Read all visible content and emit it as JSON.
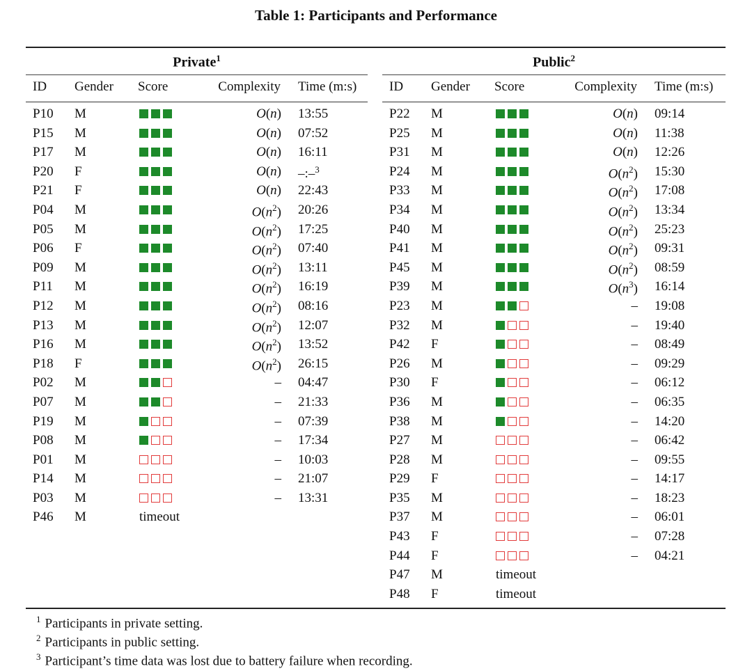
{
  "caption": "Table 1: Participants and Performance",
  "columns": [
    "ID",
    "Gender",
    "Score",
    "Complexity",
    "Time (m:s)"
  ],
  "private": {
    "title": "Private",
    "title_sup": "1",
    "rows": [
      {
        "id": "P10",
        "gender": "M",
        "score": 3,
        "complexity": "n",
        "time": "13:55"
      },
      {
        "id": "P15",
        "gender": "M",
        "score": 3,
        "complexity": "n",
        "time": "07:52"
      },
      {
        "id": "P17",
        "gender": "M",
        "score": 3,
        "complexity": "n",
        "time": "16:11"
      },
      {
        "id": "P20",
        "gender": "F",
        "score": 3,
        "complexity": "n",
        "time": "–:–",
        "time_sup": "3"
      },
      {
        "id": "P21",
        "gender": "F",
        "score": 3,
        "complexity": "n",
        "time": "22:43"
      },
      {
        "id": "P04",
        "gender": "M",
        "score": 3,
        "complexity": "n^2",
        "time": "20:26"
      },
      {
        "id": "P05",
        "gender": "M",
        "score": 3,
        "complexity": "n^2",
        "time": "17:25"
      },
      {
        "id": "P06",
        "gender": "F",
        "score": 3,
        "complexity": "n^2",
        "time": "07:40"
      },
      {
        "id": "P09",
        "gender": "M",
        "score": 3,
        "complexity": "n^2",
        "time": "13:11"
      },
      {
        "id": "P11",
        "gender": "M",
        "score": 3,
        "complexity": "n^2",
        "time": "16:19"
      },
      {
        "id": "P12",
        "gender": "M",
        "score": 3,
        "complexity": "n^2",
        "time": "08:16"
      },
      {
        "id": "P13",
        "gender": "M",
        "score": 3,
        "complexity": "n^2",
        "time": "12:07"
      },
      {
        "id": "P16",
        "gender": "M",
        "score": 3,
        "complexity": "n^2",
        "time": "13:52"
      },
      {
        "id": "P18",
        "gender": "F",
        "score": 3,
        "complexity": "n^2",
        "time": "26:15"
      },
      {
        "id": "P02",
        "gender": "M",
        "score": 2,
        "complexity": "–",
        "time": "04:47"
      },
      {
        "id": "P07",
        "gender": "M",
        "score": 2,
        "complexity": "–",
        "time": "21:33"
      },
      {
        "id": "P19",
        "gender": "M",
        "score": 1,
        "complexity": "–",
        "time": "07:39"
      },
      {
        "id": "P08",
        "gender": "M",
        "score": 1,
        "complexity": "–",
        "time": "17:34"
      },
      {
        "id": "P01",
        "gender": "M",
        "score": 0,
        "complexity": "–",
        "time": "10:03"
      },
      {
        "id": "P14",
        "gender": "M",
        "score": 0,
        "complexity": "–",
        "time": "21:07"
      },
      {
        "id": "P03",
        "gender": "M",
        "score": 0,
        "complexity": "–",
        "time": "13:31"
      },
      {
        "id": "P46",
        "gender": "M",
        "score": "timeout",
        "complexity": "",
        "time": ""
      }
    ]
  },
  "public": {
    "title": "Public",
    "title_sup": "2",
    "rows": [
      {
        "id": "P22",
        "gender": "M",
        "score": 3,
        "complexity": "n",
        "time": "09:14"
      },
      {
        "id": "P25",
        "gender": "M",
        "score": 3,
        "complexity": "n",
        "time": "11:38"
      },
      {
        "id": "P31",
        "gender": "M",
        "score": 3,
        "complexity": "n",
        "time": "12:26"
      },
      {
        "id": "P24",
        "gender": "M",
        "score": 3,
        "complexity": "n^2",
        "time": "15:30"
      },
      {
        "id": "P33",
        "gender": "M",
        "score": 3,
        "complexity": "n^2",
        "time": "17:08"
      },
      {
        "id": "P34",
        "gender": "M",
        "score": 3,
        "complexity": "n^2",
        "time": "13:34"
      },
      {
        "id": "P40",
        "gender": "M",
        "score": 3,
        "complexity": "n^2",
        "time": "25:23"
      },
      {
        "id": "P41",
        "gender": "M",
        "score": 3,
        "complexity": "n^2",
        "time": "09:31"
      },
      {
        "id": "P45",
        "gender": "M",
        "score": 3,
        "complexity": "n^2",
        "time": "08:59"
      },
      {
        "id": "P39",
        "gender": "M",
        "score": 3,
        "complexity": "n^3",
        "time": "16:14"
      },
      {
        "id": "P23",
        "gender": "M",
        "score": 2,
        "complexity": "–",
        "time": "19:08"
      },
      {
        "id": "P32",
        "gender": "M",
        "score": 1,
        "complexity": "–",
        "time": "19:40"
      },
      {
        "id": "P42",
        "gender": "F",
        "score": 1,
        "complexity": "–",
        "time": "08:49"
      },
      {
        "id": "P26",
        "gender": "M",
        "score": 1,
        "complexity": "–",
        "time": "09:29"
      },
      {
        "id": "P30",
        "gender": "F",
        "score": 1,
        "complexity": "–",
        "time": "06:12"
      },
      {
        "id": "P36",
        "gender": "M",
        "score": 1,
        "complexity": "–",
        "time": "06:35"
      },
      {
        "id": "P38",
        "gender": "M",
        "score": 1,
        "complexity": "–",
        "time": "14:20"
      },
      {
        "id": "P27",
        "gender": "M",
        "score": 0,
        "complexity": "–",
        "time": "06:42"
      },
      {
        "id": "P28",
        "gender": "M",
        "score": 0,
        "complexity": "–",
        "time": "09:55"
      },
      {
        "id": "P29",
        "gender": "F",
        "score": 0,
        "complexity": "–",
        "time": "14:17"
      },
      {
        "id": "P35",
        "gender": "M",
        "score": 0,
        "complexity": "–",
        "time": "18:23"
      },
      {
        "id": "P37",
        "gender": "M",
        "score": 0,
        "complexity": "–",
        "time": "06:01"
      },
      {
        "id": "P43",
        "gender": "F",
        "score": 0,
        "complexity": "–",
        "time": "07:28"
      },
      {
        "id": "P44",
        "gender": "F",
        "score": 0,
        "complexity": "–",
        "time": "04:21"
      },
      {
        "id": "P47",
        "gender": "M",
        "score": "timeout",
        "complexity": "",
        "time": ""
      },
      {
        "id": "P48",
        "gender": "F",
        "score": "timeout",
        "complexity": "",
        "time": ""
      }
    ]
  },
  "footnotes": [
    {
      "mark": "1",
      "text": "Participants in private setting."
    },
    {
      "mark": "2",
      "text": "Participants in public setting."
    },
    {
      "mark": "3",
      "text": "Participant’s time data was lost due to battery failure when recording."
    }
  ],
  "colors": {
    "pass": "#1d8a2a",
    "fail": "#e23b3b"
  }
}
